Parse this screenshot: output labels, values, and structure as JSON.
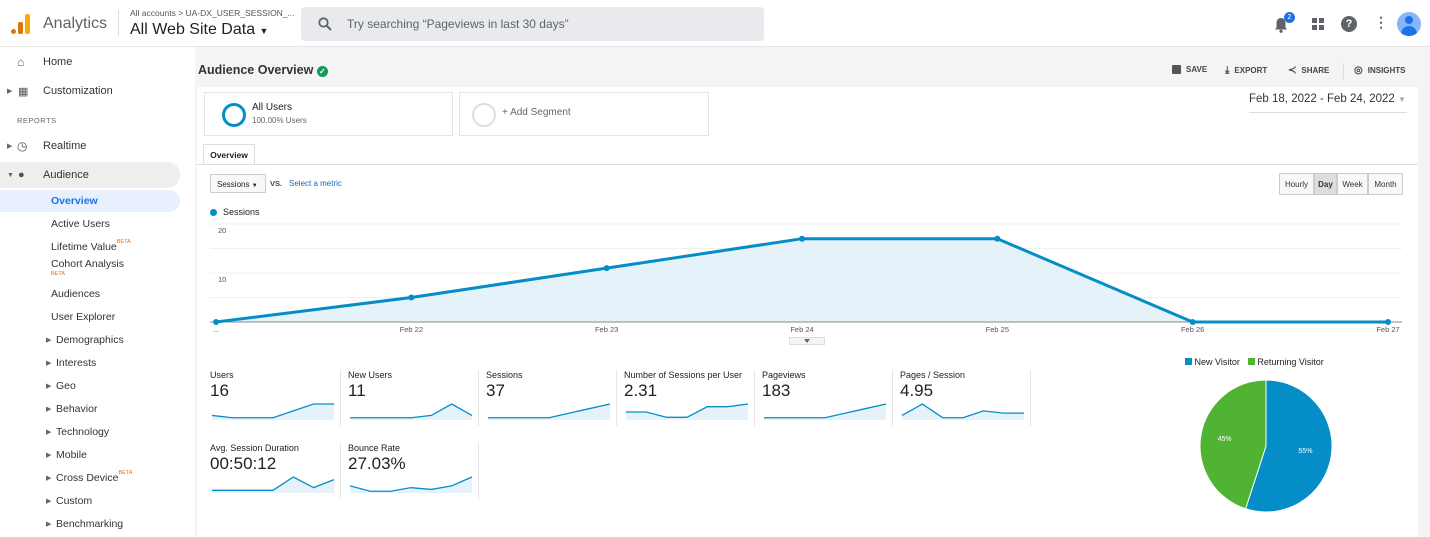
{
  "header": {
    "app_name": "Analytics",
    "breadcrumb": "All accounts > UA-DX_USER_SESSION_...",
    "property": "All Web Site Data",
    "search_placeholder": "Try searching “Pageviews in last 30 days”",
    "notification_count": "2"
  },
  "sidebar": {
    "home": "Home",
    "customization": "Customization",
    "section": "REPORTS",
    "realtime": "Realtime",
    "audience": "Audience",
    "items": [
      {
        "label": "Overview"
      },
      {
        "label": "Active Users"
      },
      {
        "label": "Lifetime Value",
        "badge": "BETA"
      },
      {
        "label": "Cohort Analysis",
        "badge": "BETA"
      },
      {
        "label": "Audiences"
      },
      {
        "label": "User Explorer"
      },
      {
        "label": "Demographics"
      },
      {
        "label": "Interests"
      },
      {
        "label": "Geo"
      },
      {
        "label": "Behavior"
      },
      {
        "label": "Technology"
      },
      {
        "label": "Mobile"
      },
      {
        "label": "Cross Device",
        "badge": "BETA"
      },
      {
        "label": "Custom"
      },
      {
        "label": "Benchmarking"
      }
    ]
  },
  "page": {
    "title": "Audience Overview",
    "save": "SAVE",
    "export": "EXPORT",
    "share": "SHARE",
    "insights": "INSIGHTS",
    "date_range": "Feb 18, 2022 - Feb 24, 2022"
  },
  "segments": {
    "all_users": "All Users",
    "all_users_pct": "100.00% Users",
    "add": "+ Add Segment"
  },
  "tabs": {
    "overview": "Overview"
  },
  "controls": {
    "metric": "Sessions",
    "vs": "VS.",
    "select_metric": "Select a metric",
    "granularity": [
      "Hourly",
      "Day",
      "Week",
      "Month"
    ],
    "selected": "Day"
  },
  "chart_data": [
    {
      "type": "area",
      "series": [
        {
          "name": "Sessions",
          "values": [
            0,
            5,
            11,
            17,
            17,
            0,
            0
          ]
        }
      ],
      "categories": [
        "...",
        "Feb 22",
        "Feb 23",
        "Feb 24",
        "Feb 25",
        "Feb 26",
        "Feb 27"
      ],
      "yticks": [
        "10",
        "20"
      ],
      "ylim": [
        0,
        20
      ],
      "color": "#058dc7",
      "legend": "top-left"
    },
    {
      "type": "pie",
      "series": [
        {
          "name": "New Visitor",
          "value": 55,
          "label": "55%",
          "color": "#058dc7"
        },
        {
          "name": "Returning Visitor",
          "value": 45,
          "label": "45%",
          "color": "#50b432"
        }
      ],
      "legend": "top"
    }
  ],
  "metrics": [
    {
      "label": "Users",
      "value": "16",
      "spark": [
        2,
        1,
        1,
        1,
        4,
        7,
        7
      ]
    },
    {
      "label": "New Users",
      "value": "11",
      "spark": [
        1,
        1,
        1,
        1,
        2,
        7,
        2
      ]
    },
    {
      "label": "Sessions",
      "value": "37",
      "spark": [
        1,
        1,
        1,
        1,
        3,
        5,
        7
      ]
    },
    {
      "label": "Number of Sessions per User",
      "value": "2.31",
      "spark": [
        3,
        3,
        1,
        1,
        5,
        5,
        6
      ]
    },
    {
      "label": "Pageviews",
      "value": "183",
      "spark": [
        1,
        1,
        1,
        1,
        3,
        5,
        7
      ]
    },
    {
      "label": "Pages / Session",
      "value": "4.95",
      "spark": [
        2,
        7,
        1,
        1,
        4,
        3,
        3
      ]
    },
    {
      "label": "Avg. Session Duration",
      "value": "00:50:12",
      "spark": [
        1,
        1,
        1,
        1,
        6,
        2,
        5
      ]
    },
    {
      "label": "Bounce Rate",
      "value": "27.03%",
      "spark": [
        4,
        1,
        1,
        3,
        2,
        4,
        9
      ]
    }
  ]
}
